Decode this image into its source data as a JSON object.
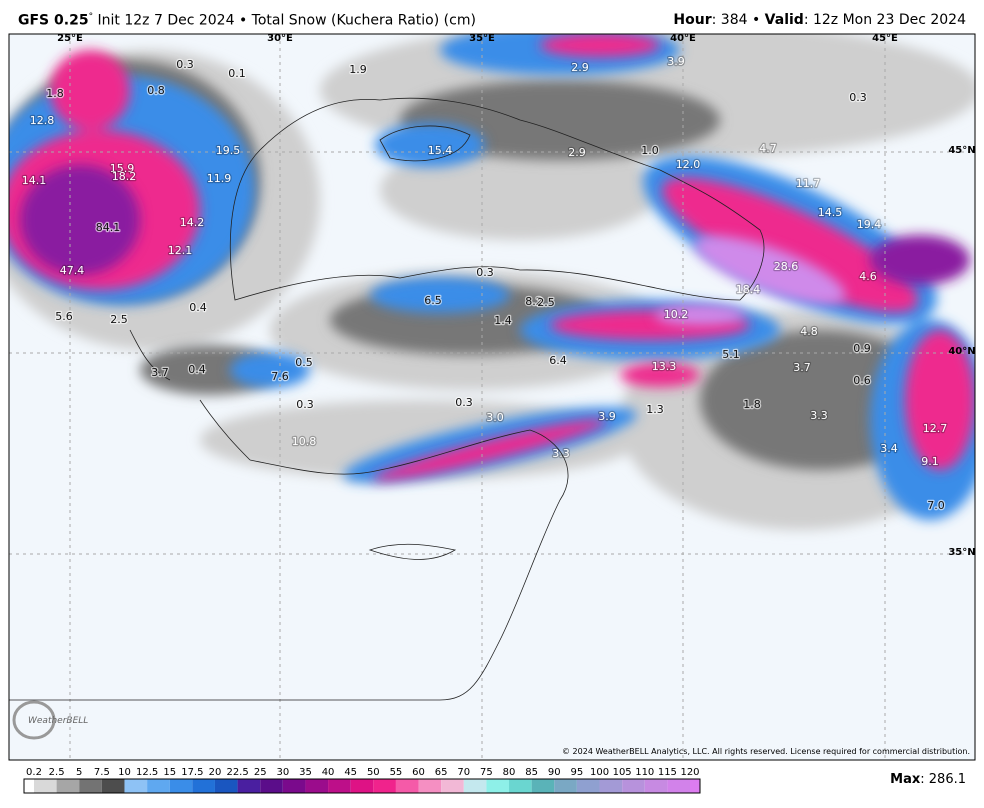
{
  "header": {
    "model": "GFS 0.25",
    "degree": "°",
    "description": "Init 12z 7 Dec 2024 • Total Snow (Kuchera Ratio) (cm)",
    "hour_key": "Hour",
    "hour_value": ": 384 • ",
    "valid_key": "Valid",
    "valid_value": ": 12z Mon 23 Dec 2024"
  },
  "map": {
    "geo_labels": [
      "25°E",
      "30°E",
      "35°E",
      "40°E",
      "45°E",
      "45°N",
      "40°N",
      "35°N"
    ],
    "snow_labels": [
      "0.3",
      "0.1",
      "1.8",
      "0.8",
      "12.8",
      "1.9",
      "2.9",
      "3.9",
      "0.3",
      "15.4",
      "2.9",
      "1.0",
      "4.7",
      "12.0",
      "19.5",
      "15.9",
      "18.2",
      "11.9",
      "14.1",
      "11.7",
      "14.5",
      "19.4",
      "84.1",
      "14.2",
      "12.1",
      "47.4",
      "0.3",
      "28.6",
      "4.6",
      "18.4",
      "6.5",
      "8.2",
      "2.5",
      "0.4",
      "5.6",
      "2.5",
      "10.2",
      "1.4",
      "4.8",
      "0.9",
      "6.4",
      "5.1",
      "0.5",
      "3.7",
      "0.4",
      "7.6",
      "13.3",
      "3.7",
      "0.6",
      "0.3",
      "0.3",
      "1.8",
      "1.3",
      "3.0",
      "3.9",
      "3.3",
      "12.7",
      "10.8",
      "3.3",
      "3.4",
      "9.1",
      "7.0"
    ],
    "copyright": "© 2024 WeatherBELL Analytics, LLC. All rights reserved. License required for commercial distribution.",
    "logo": "WeatherBELL"
  },
  "colorbar": {
    "ticks": [
      0.2,
      2.5,
      5,
      7.5,
      10,
      12.5,
      15,
      17.5,
      20,
      22.5,
      25,
      30,
      35,
      40,
      45,
      50,
      55,
      60,
      65,
      70,
      75,
      80,
      85,
      90,
      95,
      100,
      105,
      110,
      115,
      120
    ],
    "colors": [
      "#ffffff",
      "#d9d9d9",
      "#a6a6a6",
      "#737373",
      "#4d4d4d",
      "#8ec2f5",
      "#5fa8f0",
      "#3a8de8",
      "#2271d8",
      "#1a56c0",
      "#4a1fa0",
      "#5b0d8a",
      "#7a0a8c",
      "#9b0c8c",
      "#bd0f89",
      "#de1285",
      "#f0238c",
      "#f55aa8",
      "#f58fc2",
      "#f2b8d6",
      "#c4e8ee",
      "#8ef0e8",
      "#6ad6d0",
      "#5ab3b8",
      "#7aa8c4",
      "#8fa0d0",
      "#a39ad6",
      "#b792dc",
      "#c78ae2",
      "#d282ea",
      "#dd7cf0"
    ]
  },
  "max": {
    "key": "Max",
    "value": ": 286.1"
  }
}
